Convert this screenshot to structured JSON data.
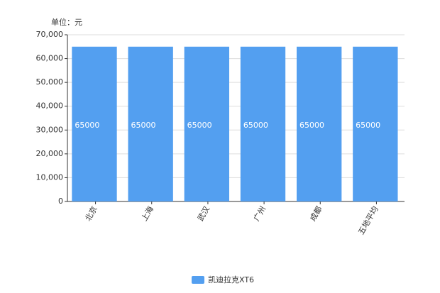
{
  "chart_data": {
    "type": "bar",
    "ylabel": "单位：元",
    "categories": [
      "北京",
      "上海",
      "武汉",
      "广州",
      "成都",
      "五地平均"
    ],
    "series": [
      {
        "name": "凯迪拉克XT6",
        "color": "#539ff0",
        "values": [
          65000,
          65000,
          65000,
          65000,
          65000,
          65000
        ]
      }
    ],
    "ylim": [
      0,
      70000
    ],
    "yticks": [
      0,
      {
        "value": 10000,
        "label": "10,000"
      },
      {
        "value": 20000,
        "label": "20,000"
      },
      {
        "value": 30000,
        "label": "30,000"
      },
      {
        "value": 40000,
        "label": "40,000"
      },
      {
        "value": 50000,
        "label": "50,000"
      },
      {
        "value": 60000,
        "label": "60,000"
      },
      {
        "value": 70000,
        "label": "70,000"
      }
    ],
    "grid": true,
    "legend": "bottom"
  }
}
